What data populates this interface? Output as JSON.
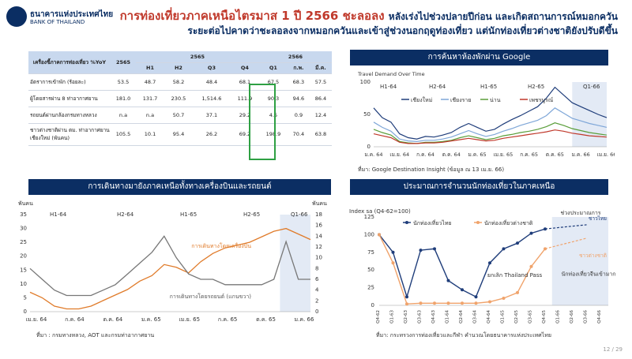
{
  "header": {
    "bank_name_th": "ธนาคารแห่งประเทศไทย",
    "bank_name_en": "BANK OF THAILAND",
    "title_line1": "การท่องเที่ยวภาคเหนือไตรมาส 1 ปี 2566 ชะลอลง",
    "title_line1_b": "หลังเร่งไปช่วงปลายปีก่อน และเกิดสถานการณ์หมอกควัน",
    "title_line2": "ระยะต่อไปคาดว่าชะลอลงจากหมอกควันและเข้าสู่ช่วงนอกฤดูท่องเที่ยว แต่นักท่องเที่ยวต่างชาติยังปรับดีขึ้น"
  },
  "table": {
    "corner": "เครื่องชี้ภาคการท่องเที่ยว %YoY",
    "col_2565": "2565",
    "group_2565": "2565",
    "group_2566": "2566",
    "sub_headers": [
      "H1",
      "H2",
      "Q3",
      "Q4",
      "Q1",
      "ก.พ.",
      "มี.ค."
    ],
    "rows": [
      {
        "label": "อัตราการเข้าพัก (ร้อยละ)",
        "values": [
          "53.5",
          "48.7",
          "58.2",
          "48.4",
          "68.1",
          "67.5",
          "68.3",
          "57.5"
        ]
      },
      {
        "label": "ผู้โดยสารผ่าน 8 ท่าอากาศยาน",
        "values": [
          "181.0",
          "131.7",
          "230.5",
          "1,514.6",
          "111.9",
          "90.3",
          "94.6",
          "86.4"
        ]
      },
      {
        "label": "รถยนต์ผ่านกล้องกรมทางหลวง",
        "values": [
          "n.a",
          "n.a",
          "50.7",
          "37.1",
          "29.2",
          "4.5",
          "0.9",
          "12.4"
        ]
      },
      {
        "label": "ชาวต่างชาติผ่าน ตม. ท่าอากาศยานเชียงใหม่ (พันคน)",
        "values": [
          "105.5",
          "10.1",
          "95.4",
          "26.2",
          "69.2",
          "198.9",
          "70.4",
          "63.8"
        ]
      }
    ]
  },
  "panels": {
    "google_title": "การค้นหาห้องพักผ่าน Google",
    "google_source": "ที่มา: Google Destination Insight (ข้อมูล ณ 13 เม.ย. 66)",
    "travel_title": "การเดินทางมายังภาคเหนือทั้งทางเครื่องบินและรถยนต์",
    "travel_source": "ที่มา : กรมทางหลวง, AOT และกรมท่าอากาศยาน",
    "forecast_title": "ประมาณการจำนวนนักท่องเที่ยวในภาคเหนือ",
    "forecast_source": "ที่มา: กระทรวงการท่องเที่ยวและกีฬา คำนวณโดยธนาคารแห่งประเทศไทย",
    "page_number": "12 / 29"
  },
  "chart_data": [
    {
      "type": "line",
      "title": "Travel Demand Over Time",
      "ylim": [
        0,
        100
      ],
      "yticks": [
        0,
        50,
        100
      ],
      "x_ticks": [
        "ม.ค. 64",
        "เม.ย. 64",
        "ก.ค. 64",
        "ต.ค. 64",
        "ม.ค. 65",
        "เม.ย. 65",
        "ก.ค. 65",
        "ต.ค. 65",
        "ม.ค. 66",
        "เม.ย. 66"
      ],
      "period_labels": [
        "H1-64",
        "H2-64",
        "H1-65",
        "H2-65",
        "Q1-66"
      ],
      "x": [
        0,
        1,
        2,
        3,
        4,
        5,
        6,
        7,
        8,
        9,
        10,
        11,
        12,
        13,
        14,
        15,
        16,
        17,
        18,
        19,
        20,
        21,
        22,
        23,
        24,
        25,
        26,
        27
      ],
      "series": [
        {
          "name": "เชียงใหม่",
          "color": "#1f3d7a",
          "values": [
            60,
            45,
            38,
            20,
            14,
            12,
            16,
            15,
            18,
            22,
            30,
            36,
            30,
            24,
            27,
            35,
            42,
            48,
            55,
            62,
            75,
            92,
            80,
            68,
            62,
            56,
            50,
            45
          ]
        },
        {
          "name": "เชียงราย",
          "color": "#7fa7d8",
          "values": [
            38,
            30,
            24,
            12,
            9,
            8,
            10,
            10,
            12,
            15,
            20,
            25,
            20,
            16,
            19,
            24,
            28,
            33,
            37,
            41,
            48,
            60,
            52,
            44,
            40,
            36,
            33,
            30
          ]
        },
        {
          "name": "น่าน",
          "color": "#5a9e3a",
          "values": [
            27,
            22,
            18,
            8,
            6,
            5,
            7,
            7,
            8,
            10,
            14,
            17,
            14,
            11,
            13,
            17,
            19,
            22,
            24,
            27,
            31,
            37,
            33,
            28,
            25,
            22,
            20,
            18
          ]
        },
        {
          "name": "เพชรบูรณ์",
          "color": "#c0392b",
          "values": [
            20,
            17,
            14,
            7,
            5,
            5,
            6,
            6,
            7,
            9,
            11,
            13,
            11,
            9,
            10,
            13,
            15,
            17,
            19,
            21,
            23,
            26,
            24,
            21,
            19,
            17,
            16,
            15
          ]
        }
      ]
    },
    {
      "type": "line",
      "ylabel_left": "พันคน",
      "ylabel_right": "พันคน",
      "ylim_left": [
        0,
        35
      ],
      "ylim_right": [
        0,
        18
      ],
      "yticks_left": [
        0,
        5,
        10,
        15,
        20,
        25,
        30,
        35
      ],
      "yticks_right": [
        0,
        2,
        4,
        6,
        8,
        10,
        12,
        14,
        16,
        18
      ],
      "x_ticks": [
        "เม.ย. 64",
        "ก.ค. 64",
        "ต.ค. 64",
        "ม.ค. 65",
        "เม.ย. 65",
        "ก.ค. 65",
        "ต.ค. 65",
        "ม.ค. 66"
      ],
      "period_labels": [
        "H1-64",
        "H2-64",
        "H1-65",
        "H2-65",
        "Q1-66"
      ],
      "x": [
        0,
        1,
        2,
        3,
        4,
        5,
        6,
        7,
        8,
        9,
        10,
        11,
        12,
        13,
        14,
        15,
        16,
        17,
        18,
        19,
        20,
        21,
        22,
        23
      ],
      "series": [
        {
          "name": "การเดินทางโดยเครื่องบิน",
          "axis": "left",
          "color": "#e07b2a",
          "values": [
            7,
            5,
            2,
            1,
            1,
            2,
            4,
            6,
            8,
            11,
            13,
            17,
            16,
            14,
            18,
            21,
            23,
            24,
            25,
            27,
            29,
            30,
            28,
            26
          ]
        },
        {
          "name": "การเดินทางโดยรถยนต์ (แกนขวา)",
          "axis": "right",
          "color": "#777777",
          "values": [
            8,
            6,
            4,
            3,
            3,
            3,
            4,
            5,
            7,
            9,
            11,
            14,
            10,
            7,
            6,
            6,
            5,
            5,
            5,
            5,
            6,
            13,
            6,
            6
          ]
        }
      ]
    },
    {
      "type": "line",
      "ylabel": "Index sa (Q4-62=100)",
      "ylim": [
        0,
        125
      ],
      "yticks": [
        0,
        25,
        50,
        75,
        100,
        125
      ],
      "categories": [
        "Q4-62",
        "Q1-63",
        "Q2-63",
        "Q3-63",
        "Q4-63",
        "Q1-64",
        "Q2-64",
        "Q3-64",
        "Q4-64",
        "Q1-65",
        "Q2-65",
        "Q3-65",
        "Q4-65",
        "Q1-66",
        "Q2-66",
        "Q3-66",
        "Q4-66"
      ],
      "forecast_label": "ช่วงประมาณการ",
      "annotations": [
        "ยกเลิก Thailand Pass",
        "นักท่องเที่ยวจีนเข้ามาก"
      ],
      "series": [
        {
          "name": "นักท่องเที่ยวไทย",
          "color": "#1f3d7a",
          "values": [
            100,
            75,
            12,
            78,
            80,
            35,
            22,
            12,
            60,
            80,
            88,
            102,
            108,
            null,
            null,
            null,
            null
          ],
          "forecast": [
            108,
            110,
            112,
            114
          ],
          "end_label": "ชาวไทย"
        },
        {
          "name": "นักท่องเที่ยวต่างชาติ",
          "color": "#f0a36b",
          "values": [
            100,
            60,
            2,
            3,
            3,
            3,
            3,
            3,
            5,
            10,
            18,
            55,
            80,
            null,
            null,
            null,
            null
          ],
          "forecast": [
            80,
            85,
            90,
            95
          ],
          "end_label": "ชาวต่างชาติ"
        }
      ]
    }
  ]
}
